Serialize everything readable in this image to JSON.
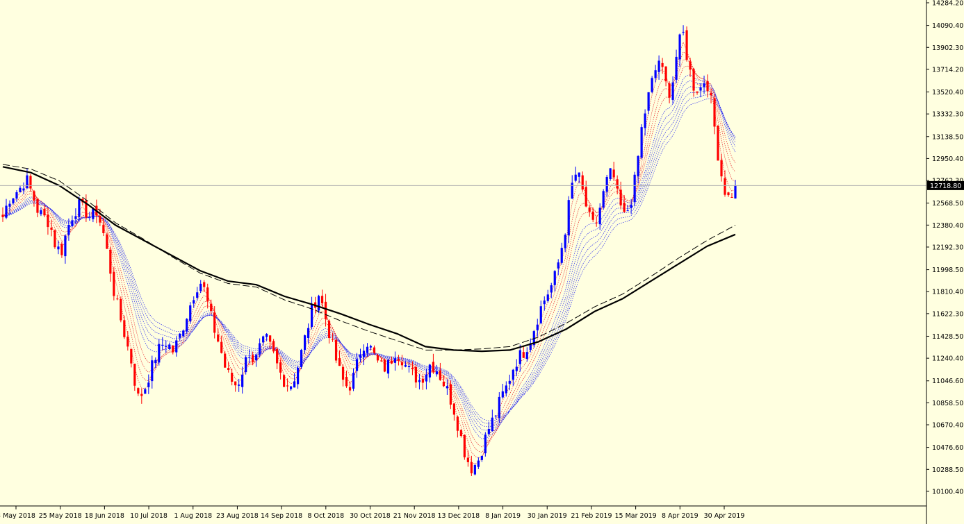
{
  "chart_data": {
    "type": "candlestick",
    "title": "",
    "xlabel": "",
    "ylabel": "",
    "ylim": [
      10100,
      14284.2
    ],
    "grid": false,
    "current_price": 12718.8,
    "y_ticks": [
      "14284.20",
      "14090.40",
      "13902.30",
      "13714.20",
      "13520.40",
      "13332.30",
      "13138.50",
      "12950.40",
      "12762.30",
      "12568.50",
      "12380.40",
      "12192.30",
      "11998.50",
      "11810.40",
      "11622.30",
      "11428.50",
      "11240.40",
      "11046.60",
      "10858.50",
      "10670.40",
      "10476.60",
      "10288.50",
      "10100.40"
    ],
    "x_ticks": [
      "3 May 2018",
      "25 May 2018",
      "18 Jun 2018",
      "10 Jul 2018",
      "1 Aug 2018",
      "23 Aug 2018",
      "14 Sep 2018",
      "8 Oct 2018",
      "30 Oct 2018",
      "21 Nov 2018",
      "13 Dec 2018",
      "8 Jan 2019",
      "30 Jan 2019",
      "21 Feb 2019",
      "15 Mar 2019",
      "8 Apr 2019",
      "30 Apr 2019"
    ],
    "close_path": [
      12450,
      12600,
      12650,
      12700,
      12780,
      12650,
      12500,
      12450,
      12400,
      12200,
      12150,
      12350,
      12480,
      12550,
      12500,
      12450,
      12500,
      12350,
      12100,
      11800,
      11600,
      11400,
      11200,
      10900,
      10950,
      11100,
      11250,
      11350,
      11380,
      11300,
      11400,
      11550,
      11700,
      11850,
      11900,
      11700,
      11500,
      11350,
      11150,
      11050,
      11000,
      11150,
      11300,
      11200,
      11350,
      11400,
      11300,
      11150,
      11050,
      11000,
      11100,
      11300,
      11500,
      11700,
      11800,
      11600,
      11400,
      11200,
      11050,
      10980,
      11100,
      11300,
      11400,
      11300,
      11200,
      11150,
      11200,
      11300,
      11250,
      11150,
      11100,
      11050,
      11100,
      11200,
      11150,
      11050,
      10950,
      10800,
      10600,
      10400,
      10300,
      10350,
      10500,
      10650,
      10750,
      10900,
      11000,
      11150,
      11250,
      11300,
      11400,
      11550,
      11700,
      11800,
      11900,
      12100,
      12350,
      12700,
      12850,
      12650,
      12450,
      12350,
      12550,
      12750,
      12850,
      12600,
      12450,
      12550,
      12800,
      13200,
      13450,
      13650,
      13800,
      13600,
      13500,
      13850,
      14050,
      13750,
      13550,
      13550,
      13650,
      13400,
      13000,
      12700,
      12600,
      12718.8
    ],
    "series": [
      {
        "name": "",
        "role": "fast-ma",
        "color": "#e8191e",
        "style": "dotted",
        "lag": 3
      },
      {
        "name": "",
        "role": "fast-ma",
        "color": "#e8191e",
        "style": "dotted",
        "lag": 5
      },
      {
        "name": "",
        "role": "fast-ma",
        "color": "#e8191e",
        "style": "dotted",
        "lag": 7
      },
      {
        "name": "",
        "role": "fast-ma",
        "color": "#e8191e",
        "style": "dotted",
        "lag": 9
      },
      {
        "name": "",
        "role": "slow-ma",
        "color": "#1e1ef0",
        "style": "dotted",
        "lag": 12
      },
      {
        "name": "",
        "role": "slow-ma",
        "color": "#1e1ef0",
        "style": "dotted",
        "lag": 14
      },
      {
        "name": "",
        "role": "slow-ma",
        "color": "#1e1ef0",
        "style": "dotted",
        "lag": 16
      },
      {
        "name": "",
        "role": "slow-ma",
        "color": "#1e1ef0",
        "style": "dotted",
        "lag": 18
      },
      {
        "name": "",
        "role": "slow-ma",
        "color": "#1e1ef0",
        "style": "dotted",
        "lag": 20
      },
      {
        "name": "",
        "role": "slow-ma",
        "color": "#1e1ef0",
        "style": "dotted",
        "lag": 22
      },
      {
        "name": "",
        "role": "long-ma",
        "color": "#000000",
        "style": "solid",
        "values": [
          12880,
          12830,
          12720,
          12560,
          12380,
          12250,
          12120,
          11990,
          11900,
          11870,
          11770,
          11700,
          11620,
          11530,
          11450,
          11340,
          11310,
          11300,
          11310,
          11380,
          11490,
          11640,
          11750,
          11900,
          12050,
          12200,
          12300
        ]
      },
      {
        "name": "",
        "role": "long-ma",
        "color": "#000000",
        "style": "dashed",
        "values": [
          12900,
          12860,
          12760,
          12590,
          12400,
          12260,
          12110,
          11970,
          11880,
          11850,
          11740,
          11660,
          11560,
          11470,
          11390,
          11310,
          11310,
          11320,
          11340,
          11420,
          11540,
          11680,
          11790,
          11940,
          12100,
          12250,
          12380
        ]
      }
    ],
    "colors": {
      "bull": "#0000ff",
      "bear": "#ff0000",
      "background": "#ffffe0",
      "axis": "#000000",
      "price_line": "#b0b0b0",
      "price_tag_bg": "#000000",
      "price_tag_fg": "#ffffff"
    }
  }
}
